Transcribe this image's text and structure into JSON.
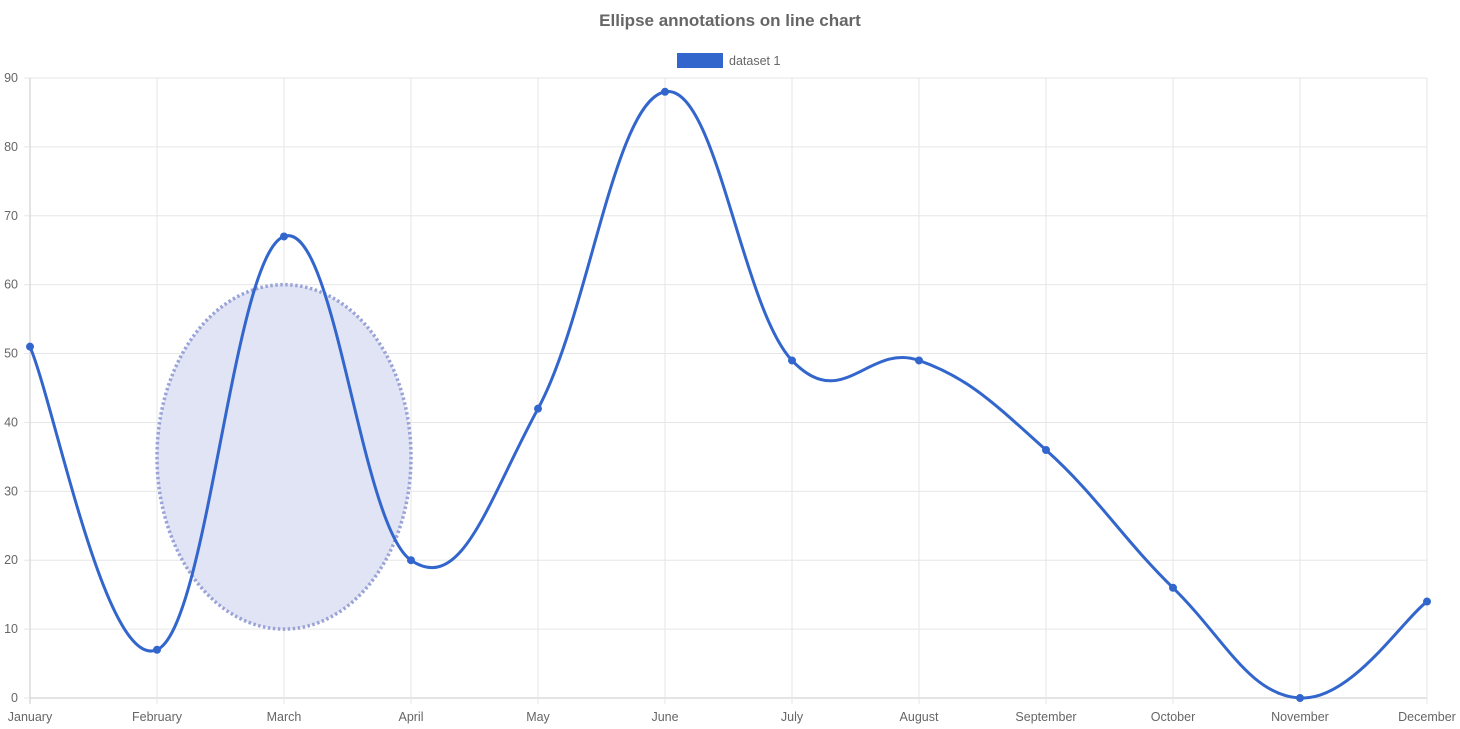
{
  "chart_data": {
    "type": "line",
    "title": "Ellipse annotations on line chart",
    "categories": [
      "January",
      "February",
      "March",
      "April",
      "May",
      "June",
      "July",
      "August",
      "September",
      "October",
      "November",
      "December"
    ],
    "series": [
      {
        "name": "dataset 1",
        "values": [
          51,
          7,
          67,
          20,
          42,
          88,
          49,
          49,
          36,
          16,
          0,
          14
        ],
        "color": "#3366cc"
      }
    ],
    "ylim": [
      0,
      90
    ],
    "yticks": [
      0,
      10,
      20,
      30,
      40,
      50,
      60,
      70,
      80,
      90
    ],
    "grid": true,
    "legend_position": "top",
    "annotations": [
      {
        "type": "ellipse",
        "x_range": [
          "February",
          "April"
        ],
        "y_range": [
          10,
          60
        ],
        "fill_color": "#e0e4f4",
        "border_color": "#9aa3d8",
        "border_style": "dotted"
      }
    ]
  }
}
